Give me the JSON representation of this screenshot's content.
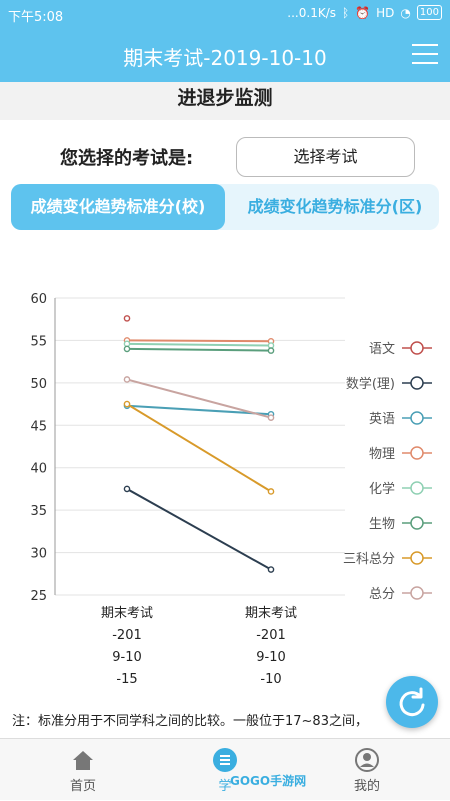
{
  "status_bar": {
    "time": "下午5:08",
    "network": "...0.1K/s",
    "signal": "HD",
    "battery": "100"
  },
  "app_bar": {
    "title": "期末考试-2019-10-10"
  },
  "section": {
    "title": "进退步监测"
  },
  "exam_select": {
    "label": "您选择的考试是:",
    "button": "选择考试"
  },
  "tabs": [
    {
      "label": "成绩变化趋势标准分(校)",
      "active": true
    },
    {
      "label": "成绩变化趋势标准分(区)",
      "active": false
    }
  ],
  "chart_data": {
    "type": "line",
    "categories": [
      [
        "期末考试",
        "-201",
        "9-10",
        "-15"
      ],
      [
        "期末考试",
        "-201",
        "9-10",
        "-10"
      ]
    ],
    "ylim": [
      25,
      60
    ],
    "yticks": [
      25,
      30,
      35,
      40,
      45,
      50,
      55,
      60
    ],
    "grid": true,
    "legend_position": "right",
    "series": [
      {
        "name": "语文",
        "color": "#c0504d",
        "values": [
          57.6,
          null
        ]
      },
      {
        "name": "数学(理)",
        "color": "#2c3e50",
        "values": [
          37.5,
          28.0
        ]
      },
      {
        "name": "英语",
        "color": "#4a9fb5",
        "values": [
          47.3,
          46.3
        ]
      },
      {
        "name": "物理",
        "color": "#e08a6b",
        "values": [
          55.0,
          54.9
        ]
      },
      {
        "name": "化学",
        "color": "#8fd0b3",
        "values": [
          54.6,
          54.4
        ]
      },
      {
        "name": "生物",
        "color": "#5a9e7c",
        "values": [
          54.0,
          53.8
        ]
      },
      {
        "name": "三科总分",
        "color": "#d89a2a",
        "values": [
          47.5,
          37.2
        ]
      },
      {
        "name": "总分",
        "color": "#c8a4a0",
        "values": [
          50.4,
          45.9
        ]
      }
    ]
  },
  "note": "注：标准分用于不同学科之间的比较。一般位于17~83之间，",
  "bottom_nav": [
    {
      "label": "首页",
      "icon": "home-icon"
    },
    {
      "label": "学",
      "icon": "list-icon"
    },
    {
      "label": "我的",
      "icon": "user-icon"
    }
  ],
  "watermark": "GOGO手游网"
}
